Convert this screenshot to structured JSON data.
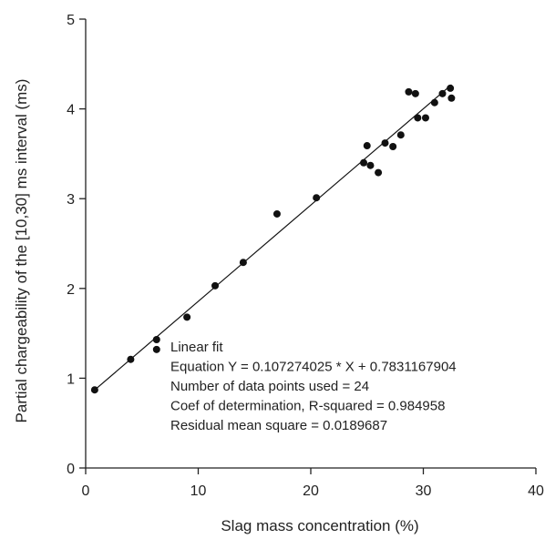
{
  "chart_data": {
    "type": "scatter",
    "title": "",
    "xlabel": "Slag mass concentration (%)",
    "ylabel": "Partial chargeability of the [10,30] ms interval (ms)",
    "xlim": [
      0,
      40
    ],
    "ylim": [
      0,
      5
    ],
    "xticks": [
      0,
      10,
      20,
      30,
      40
    ],
    "yticks": [
      0,
      1,
      2,
      3,
      4,
      5
    ],
    "grid": false,
    "legend": "none",
    "colors": {
      "points": "#111111",
      "line": "#111111",
      "axes": "#222222"
    },
    "series": [
      {
        "points": [
          [
            0.8,
            0.87
          ],
          [
            4.0,
            1.21
          ],
          [
            6.3,
            1.43
          ],
          [
            6.3,
            1.32
          ],
          [
            9.0,
            1.68
          ],
          [
            11.5,
            2.03
          ],
          [
            14.0,
            2.29
          ],
          [
            17.0,
            2.83
          ],
          [
            20.5,
            3.01
          ],
          [
            24.7,
            3.4
          ],
          [
            25.0,
            3.59
          ],
          [
            25.3,
            3.37
          ],
          [
            26.0,
            3.29
          ],
          [
            26.6,
            3.62
          ],
          [
            27.3,
            3.58
          ],
          [
            28.0,
            3.71
          ],
          [
            28.7,
            4.19
          ],
          [
            29.3,
            4.17
          ],
          [
            29.5,
            3.9
          ],
          [
            30.2,
            3.9
          ],
          [
            31.0,
            4.07
          ],
          [
            31.7,
            4.17
          ],
          [
            32.4,
            4.23
          ],
          [
            32.5,
            4.12
          ]
        ]
      }
    ],
    "fit_line": {
      "slope": 0.107274025,
      "intercept": 0.7831167904,
      "x_range": [
        0.8,
        32.5
      ]
    },
    "annotation": [
      "Linear fit",
      "Equation Y = 0.107274025 * X + 0.7831167904",
      "Number of data points used = 24",
      "Coef of determination, R-squared = 0.984958",
      "Residual mean square = 0.0189687"
    ]
  }
}
